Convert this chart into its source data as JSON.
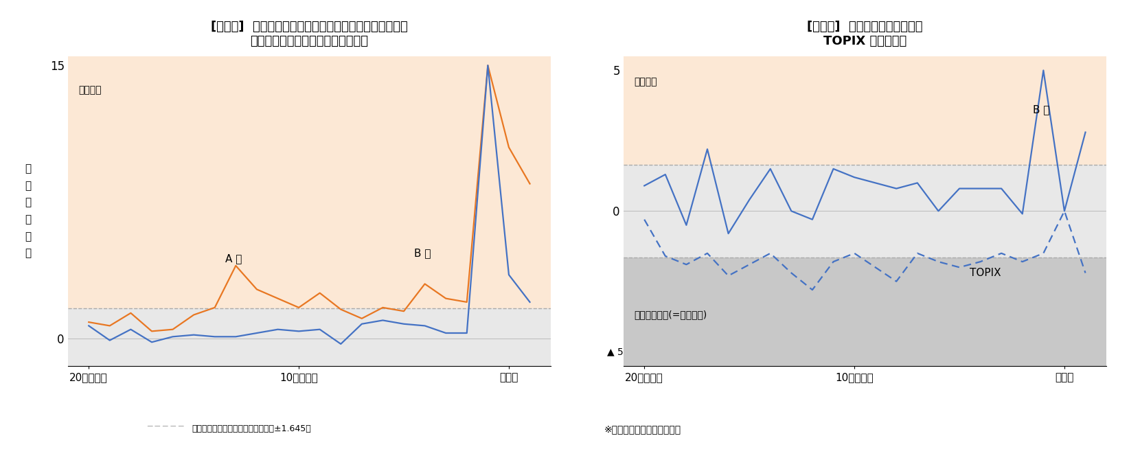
{
  "fig1": {
    "title_line1": "[図表１]  実際にインサイダー取引の対象となった企業の",
    "title_line2": "公募増資公表前における売買高変化",
    "ylabel": "標\n準\n化\n売\n買\n高",
    "xlabel_ticks": [
      "20営業日前",
      "10営業日前",
      "公表日"
    ],
    "xlim": [
      -21,
      2
    ],
    "ylim": [
      -1.5,
      15.5
    ],
    "ytick_vals": [
      0,
      15
    ],
    "ytick_labels": [
      "0",
      "15"
    ],
    "threshold": 1.645,
    "plot_bg": "#e8e8e8",
    "excess_fill": "#fce8d5",
    "excess_label": "過剰取引",
    "series_A": {
      "name": "A社",
      "color": "#e87722",
      "x": [
        -20,
        -19,
        -18,
        -17,
        -16,
        -15,
        -14,
        -13,
        -12,
        -11,
        -10,
        -9,
        -8,
        -7,
        -6,
        -5,
        -4,
        -3,
        -2,
        -1,
        0,
        1
      ],
      "y": [
        0.9,
        0.7,
        1.4,
        0.4,
        0.5,
        1.3,
        1.7,
        4.0,
        2.7,
        2.2,
        1.7,
        2.5,
        1.6,
        1.1,
        1.7,
        1.5,
        3.0,
        2.2,
        2.0,
        15.0,
        10.5,
        8.5
      ]
    },
    "series_B": {
      "name": "B社",
      "color": "#4472c4",
      "x": [
        -20,
        -19,
        -18,
        -17,
        -16,
        -15,
        -14,
        -13,
        -12,
        -11,
        -10,
        -9,
        -8,
        -7,
        -6,
        -5,
        -4,
        -3,
        -2,
        -1,
        0,
        1
      ],
      "y": [
        0.7,
        -0.1,
        0.5,
        -0.2,
        0.1,
        0.2,
        0.1,
        0.1,
        0.3,
        0.5,
        0.4,
        0.5,
        -0.3,
        0.8,
        1.0,
        0.8,
        0.7,
        0.3,
        0.3,
        15.0,
        3.5,
        2.0
      ]
    },
    "legend_line_color": "#aaaaaa",
    "legend_text": "売買高異常の目安（標準化売買高＝±1.645）"
  },
  "fig2": {
    "title_line1": "[図表２]  Ｂ社公募増資公表前の",
    "title_line2": "TOPIX 売買高変化",
    "xlabel_ticks": [
      "20営業日前",
      "10営業日前",
      "公表日"
    ],
    "xlim": [
      -21,
      2
    ],
    "ylim": [
      -5.5,
      5.5
    ],
    "ytick_vals": [
      0,
      5
    ],
    "ytick_labels": [
      "0",
      "5"
    ],
    "threshold": 1.645,
    "plot_bg": "#e8e8e8",
    "excess_fill": "#fce8d5",
    "excess_label": "過剰取引",
    "low_fill": "#c8c8c8",
    "low_label": "売買高が低い(=過少取引)",
    "note": "※ニッセイ基礎研究所が算出",
    "arrow_label": "▲ 5",
    "series_B": {
      "name": "B社",
      "color": "#4472c4",
      "x": [
        -20,
        -19,
        -18,
        -17,
        -16,
        -15,
        -14,
        -13,
        -12,
        -11,
        -10,
        -9,
        -8,
        -7,
        -6,
        -5,
        -4,
        -3,
        -2,
        -1,
        0,
        1
      ],
      "y": [
        0.9,
        1.3,
        -0.5,
        2.2,
        -0.8,
        0.4,
        1.5,
        0.0,
        -0.3,
        1.5,
        1.2,
        1.0,
        0.8,
        1.0,
        0.0,
        0.8,
        0.8,
        0.8,
        -0.1,
        5.0,
        0.0,
        2.8
      ]
    },
    "series_TOPIX": {
      "name": "TOPIX",
      "color": "#4472c4",
      "x": [
        -20,
        -19,
        -18,
        -17,
        -16,
        -15,
        -14,
        -13,
        -12,
        -11,
        -10,
        -9,
        -8,
        -7,
        -6,
        -5,
        -4,
        -3,
        -2,
        -1,
        0,
        1
      ],
      "y": [
        -0.3,
        -1.6,
        -1.9,
        -1.5,
        -2.3,
        -1.9,
        -1.5,
        -2.2,
        -2.8,
        -1.8,
        -1.5,
        -2.0,
        -2.5,
        -1.5,
        -1.8,
        -2.0,
        -1.8,
        -1.5,
        -1.8,
        -1.5,
        0.0,
        -2.2
      ]
    }
  }
}
